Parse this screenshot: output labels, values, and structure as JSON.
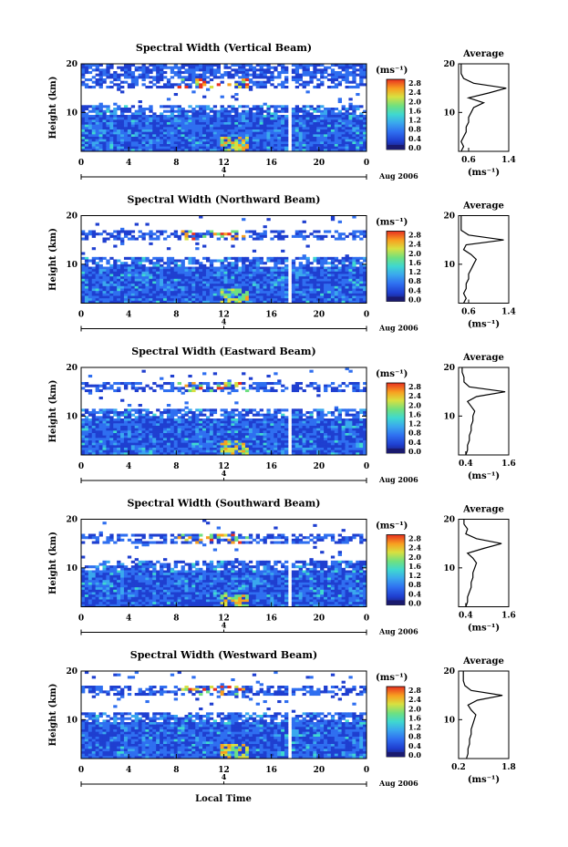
{
  "figure": {
    "xlabel": "Local Time",
    "date_label": "Aug 2006",
    "date_marker": "4",
    "colorbar_unit": "(ms⁻¹)",
    "colorbar_ticks": [
      "2.8",
      "2.4",
      "2.0",
      "1.6",
      "1.2",
      "0.8",
      "0.4",
      "0.0"
    ],
    "main_ylabel": "Height (km)",
    "main_yticks": [
      "20",
      "10"
    ],
    "main_xticks": [
      "0",
      "4",
      "8",
      "12",
      "16",
      "20",
      "0"
    ],
    "avg_title": "Average",
    "avg_xlabel": "(ms⁻¹)",
    "avg_yticks": [
      "20",
      "10"
    ],
    "colors": {
      "scale": [
        "#1a1a6e",
        "#1f3fd0",
        "#2f6ff0",
        "#3aa8ee",
        "#3fd8d0",
        "#6fe080",
        "#d8e040",
        "#f8a020",
        "#e83020"
      ]
    }
  },
  "chart_data": [
    {
      "type": "heatmap",
      "title": "Spectral Width (Vertical Beam)",
      "avg_xticks": [
        "0.6",
        "1.4"
      ],
      "avg_xrange": [
        0.4,
        1.4
      ],
      "avg_profile": {
        "height_km": [
          2,
          3,
          4,
          5,
          6,
          7,
          8,
          9,
          10,
          11,
          12,
          13,
          14,
          15,
          16,
          17,
          18,
          19,
          20
        ],
        "width_ms": [
          0.45,
          0.5,
          0.45,
          0.5,
          0.55,
          0.55,
          0.6,
          0.6,
          0.65,
          0.7,
          0.9,
          0.6,
          1.0,
          1.35,
          0.7,
          0.5,
          0.45,
          0.45,
          0.45
        ]
      }
    },
    {
      "type": "heatmap",
      "title": "Spectral Width (Northward Beam)",
      "avg_xticks": [
        "0.6",
        "1.4"
      ],
      "avg_xrange": [
        0.4,
        1.4
      ],
      "avg_profile": {
        "height_km": [
          2,
          3,
          4,
          5,
          6,
          7,
          8,
          9,
          10,
          11,
          12,
          13,
          14,
          15,
          16,
          17,
          18,
          19,
          20
        ],
        "width_ms": [
          0.5,
          0.55,
          0.5,
          0.55,
          0.55,
          0.6,
          0.6,
          0.65,
          0.7,
          0.75,
          0.65,
          0.5,
          0.55,
          1.3,
          0.6,
          0.45,
          0.45,
          0.45,
          0.45
        ]
      }
    },
    {
      "type": "heatmap",
      "title": "Spectral Width (Eastward Beam)",
      "avg_xticks": [
        "0.4",
        "1.6"
      ],
      "avg_xrange": [
        0.2,
        1.6
      ],
      "avg_profile": {
        "height_km": [
          2,
          3,
          4,
          5,
          6,
          7,
          8,
          9,
          10,
          11,
          12,
          13,
          14,
          15,
          16,
          17,
          18,
          19,
          20
        ],
        "width_ms": [
          0.4,
          0.45,
          0.45,
          0.5,
          0.5,
          0.55,
          0.55,
          0.6,
          0.6,
          0.65,
          0.55,
          0.45,
          0.7,
          1.5,
          0.5,
          0.35,
          0.35,
          0.3,
          0.3
        ]
      }
    },
    {
      "type": "heatmap",
      "title": "Spectral Width (Southward Beam)",
      "avg_xticks": [
        "0.4",
        "1.6"
      ],
      "avg_xrange": [
        0.2,
        1.6
      ],
      "avg_profile": {
        "height_km": [
          2,
          3,
          4,
          5,
          6,
          7,
          8,
          9,
          10,
          11,
          12,
          13,
          14,
          15,
          16,
          17,
          18,
          19,
          20
        ],
        "width_ms": [
          0.4,
          0.45,
          0.45,
          0.5,
          0.55,
          0.55,
          0.6,
          0.6,
          0.65,
          0.7,
          0.6,
          0.45,
          0.9,
          1.4,
          0.7,
          0.4,
          0.45,
          0.35,
          0.35
        ]
      }
    },
    {
      "type": "heatmap",
      "title": "Spectral Width (Westward Beam)",
      "avg_xticks": [
        "0.2",
        "1.8"
      ],
      "avg_xrange": [
        0.2,
        1.8
      ],
      "avg_profile": {
        "height_km": [
          2,
          3,
          4,
          5,
          6,
          7,
          8,
          9,
          10,
          11,
          12,
          13,
          14,
          15,
          16,
          17,
          18,
          19,
          20
        ],
        "width_ms": [
          0.45,
          0.5,
          0.5,
          0.55,
          0.55,
          0.6,
          0.6,
          0.65,
          0.7,
          0.75,
          0.6,
          0.5,
          0.8,
          1.6,
          0.6,
          0.4,
          0.35,
          0.35,
          0.35
        ]
      }
    }
  ]
}
